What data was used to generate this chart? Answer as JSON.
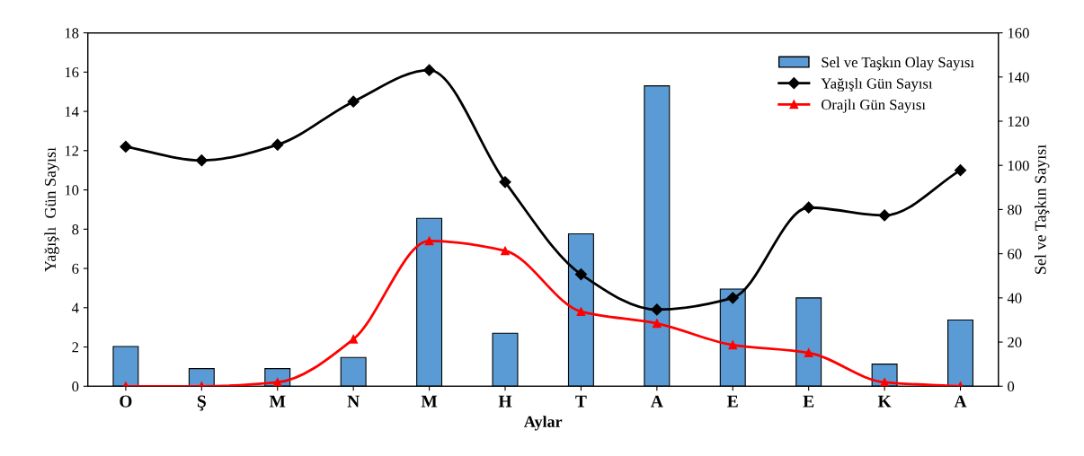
{
  "chart_data": {
    "type": "line",
    "xlabel": "Aylar",
    "ylabel": "Yağışlı  Gün Sayısı",
    "y2label": "Sel ve Taşkın Sayısı",
    "categories": [
      "O",
      "Ş",
      "M",
      "N",
      "M",
      "H",
      "T",
      "A",
      "E",
      "E",
      "K",
      "A"
    ],
    "series": [
      {
        "name": "Sel ve Taşkın Olay Sayısı",
        "type": "bar",
        "axis": "y2",
        "color": "#5b9bd5",
        "values": [
          18,
          8,
          8,
          13,
          76,
          24,
          69,
          136,
          44,
          40,
          10,
          30
        ]
      },
      {
        "name": "Yağışlı Gün Sayısı",
        "type": "line",
        "color": "#000000",
        "marker": "diamond",
        "values": [
          12.2,
          11.5,
          12.3,
          14.5,
          16.1,
          10.4,
          5.7,
          3.9,
          4.5,
          9.1,
          8.7,
          11.0
        ]
      },
      {
        "name": "Orajlı Gün Sayısı",
        "type": "line",
        "color": "#ff0000",
        "marker": "triangle",
        "values": [
          0,
          0,
          0.2,
          2.4,
          7.4,
          6.9,
          3.8,
          3.2,
          2.1,
          1.7,
          0.2,
          0
        ]
      }
    ],
    "ylim": [
      0,
      18
    ],
    "yticks": [
      0,
      2,
      4,
      6,
      8,
      10,
      12,
      14,
      16,
      18
    ],
    "y2lim": [
      0,
      160
    ],
    "y2ticks": [
      0,
      20,
      40,
      60,
      80,
      100,
      120,
      140,
      160
    ],
    "legend": "top right",
    "grid": false
  }
}
